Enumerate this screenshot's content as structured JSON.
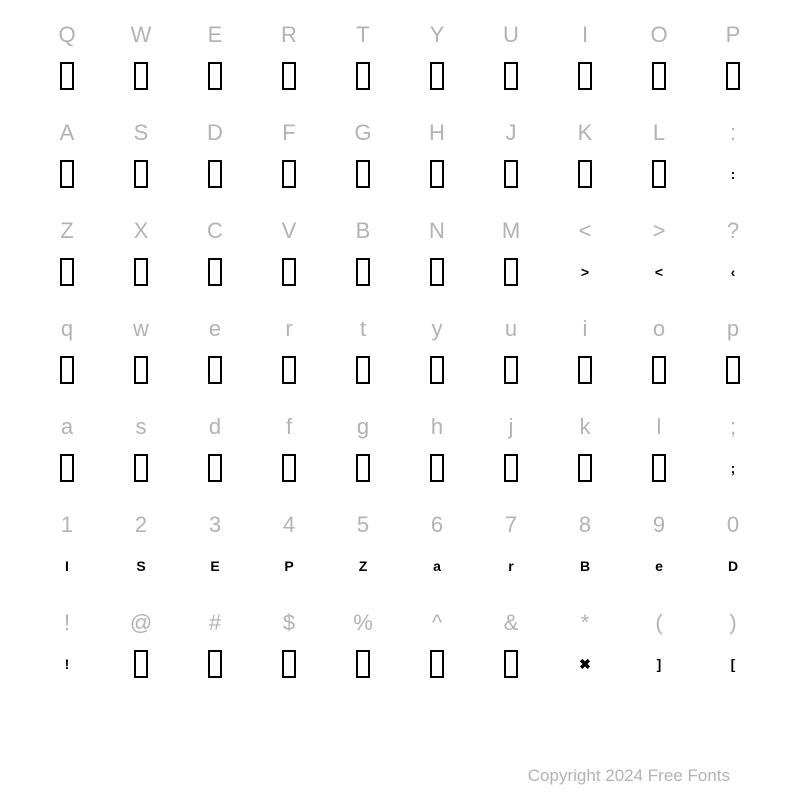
{
  "font_chart": {
    "type": "character-map",
    "columns": 10,
    "label_color": "#b3b3b3",
    "label_fontsize": 22,
    "glyph_color": "#000000",
    "background_color": "#ffffff",
    "missing_glyph_box": {
      "width": 14,
      "height": 28,
      "border_width": 2,
      "border_color": "#000000"
    },
    "rows": [
      {
        "labels": [
          "Q",
          "W",
          "E",
          "R",
          "T",
          "Y",
          "U",
          "I",
          "O",
          "P"
        ],
        "glyphs": [
          {
            "type": "box"
          },
          {
            "type": "box"
          },
          {
            "type": "box"
          },
          {
            "type": "box"
          },
          {
            "type": "box"
          },
          {
            "type": "box"
          },
          {
            "type": "box"
          },
          {
            "type": "box"
          },
          {
            "type": "box"
          },
          {
            "type": "box"
          }
        ]
      },
      {
        "labels": [
          "A",
          "S",
          "D",
          "F",
          "G",
          "H",
          "J",
          "K",
          "L",
          ":"
        ],
        "glyphs": [
          {
            "type": "box"
          },
          {
            "type": "box"
          },
          {
            "type": "box"
          },
          {
            "type": "box"
          },
          {
            "type": "box"
          },
          {
            "type": "box"
          },
          {
            "type": "box"
          },
          {
            "type": "box"
          },
          {
            "type": "box"
          },
          {
            "type": "char",
            "value": ":"
          }
        ]
      },
      {
        "labels": [
          "Z",
          "X",
          "C",
          "V",
          "B",
          "N",
          "M",
          "<",
          ">",
          "?"
        ],
        "glyphs": [
          {
            "type": "box"
          },
          {
            "type": "box"
          },
          {
            "type": "box"
          },
          {
            "type": "box"
          },
          {
            "type": "box"
          },
          {
            "type": "box"
          },
          {
            "type": "box"
          },
          {
            "type": "char",
            "value": ">"
          },
          {
            "type": "char",
            "value": "<"
          },
          {
            "type": "char",
            "value": "‹"
          }
        ]
      },
      {
        "labels": [
          "q",
          "w",
          "e",
          "r",
          "t",
          "y",
          "u",
          "i",
          "o",
          "p"
        ],
        "glyphs": [
          {
            "type": "box"
          },
          {
            "type": "box"
          },
          {
            "type": "box"
          },
          {
            "type": "box"
          },
          {
            "type": "box"
          },
          {
            "type": "box"
          },
          {
            "type": "box"
          },
          {
            "type": "box"
          },
          {
            "type": "box"
          },
          {
            "type": "box"
          }
        ]
      },
      {
        "labels": [
          "a",
          "s",
          "d",
          "f",
          "g",
          "h",
          "j",
          "k",
          "l",
          ";"
        ],
        "glyphs": [
          {
            "type": "box"
          },
          {
            "type": "box"
          },
          {
            "type": "box"
          },
          {
            "type": "box"
          },
          {
            "type": "box"
          },
          {
            "type": "box"
          },
          {
            "type": "box"
          },
          {
            "type": "box"
          },
          {
            "type": "box"
          },
          {
            "type": "char",
            "value": ";"
          }
        ]
      },
      {
        "labels": [
          "1",
          "2",
          "3",
          "4",
          "5",
          "6",
          "7",
          "8",
          "9",
          "0"
        ],
        "glyphs": [
          {
            "type": "char",
            "value": "I"
          },
          {
            "type": "char",
            "value": "S"
          },
          {
            "type": "char",
            "value": "E"
          },
          {
            "type": "char",
            "value": "P"
          },
          {
            "type": "char",
            "value": "Z"
          },
          {
            "type": "char",
            "value": "a"
          },
          {
            "type": "char",
            "value": "r"
          },
          {
            "type": "char",
            "value": "B"
          },
          {
            "type": "char",
            "value": "e"
          },
          {
            "type": "char",
            "value": "D"
          }
        ]
      },
      {
        "labels": [
          "!",
          "@",
          "#",
          "$",
          "%",
          "^",
          "&",
          "*",
          "(",
          ")"
        ],
        "glyphs": [
          {
            "type": "char",
            "value": "!"
          },
          {
            "type": "box"
          },
          {
            "type": "box"
          },
          {
            "type": "box"
          },
          {
            "type": "box"
          },
          {
            "type": "box"
          },
          {
            "type": "box"
          },
          {
            "type": "char",
            "value": "✖"
          },
          {
            "type": "char",
            "value": "]"
          },
          {
            "type": "char",
            "value": "["
          }
        ]
      }
    ]
  },
  "footer": {
    "text": "Copyright 2024 Free Fonts",
    "color": "#b3b3b3",
    "fontsize": 17
  }
}
